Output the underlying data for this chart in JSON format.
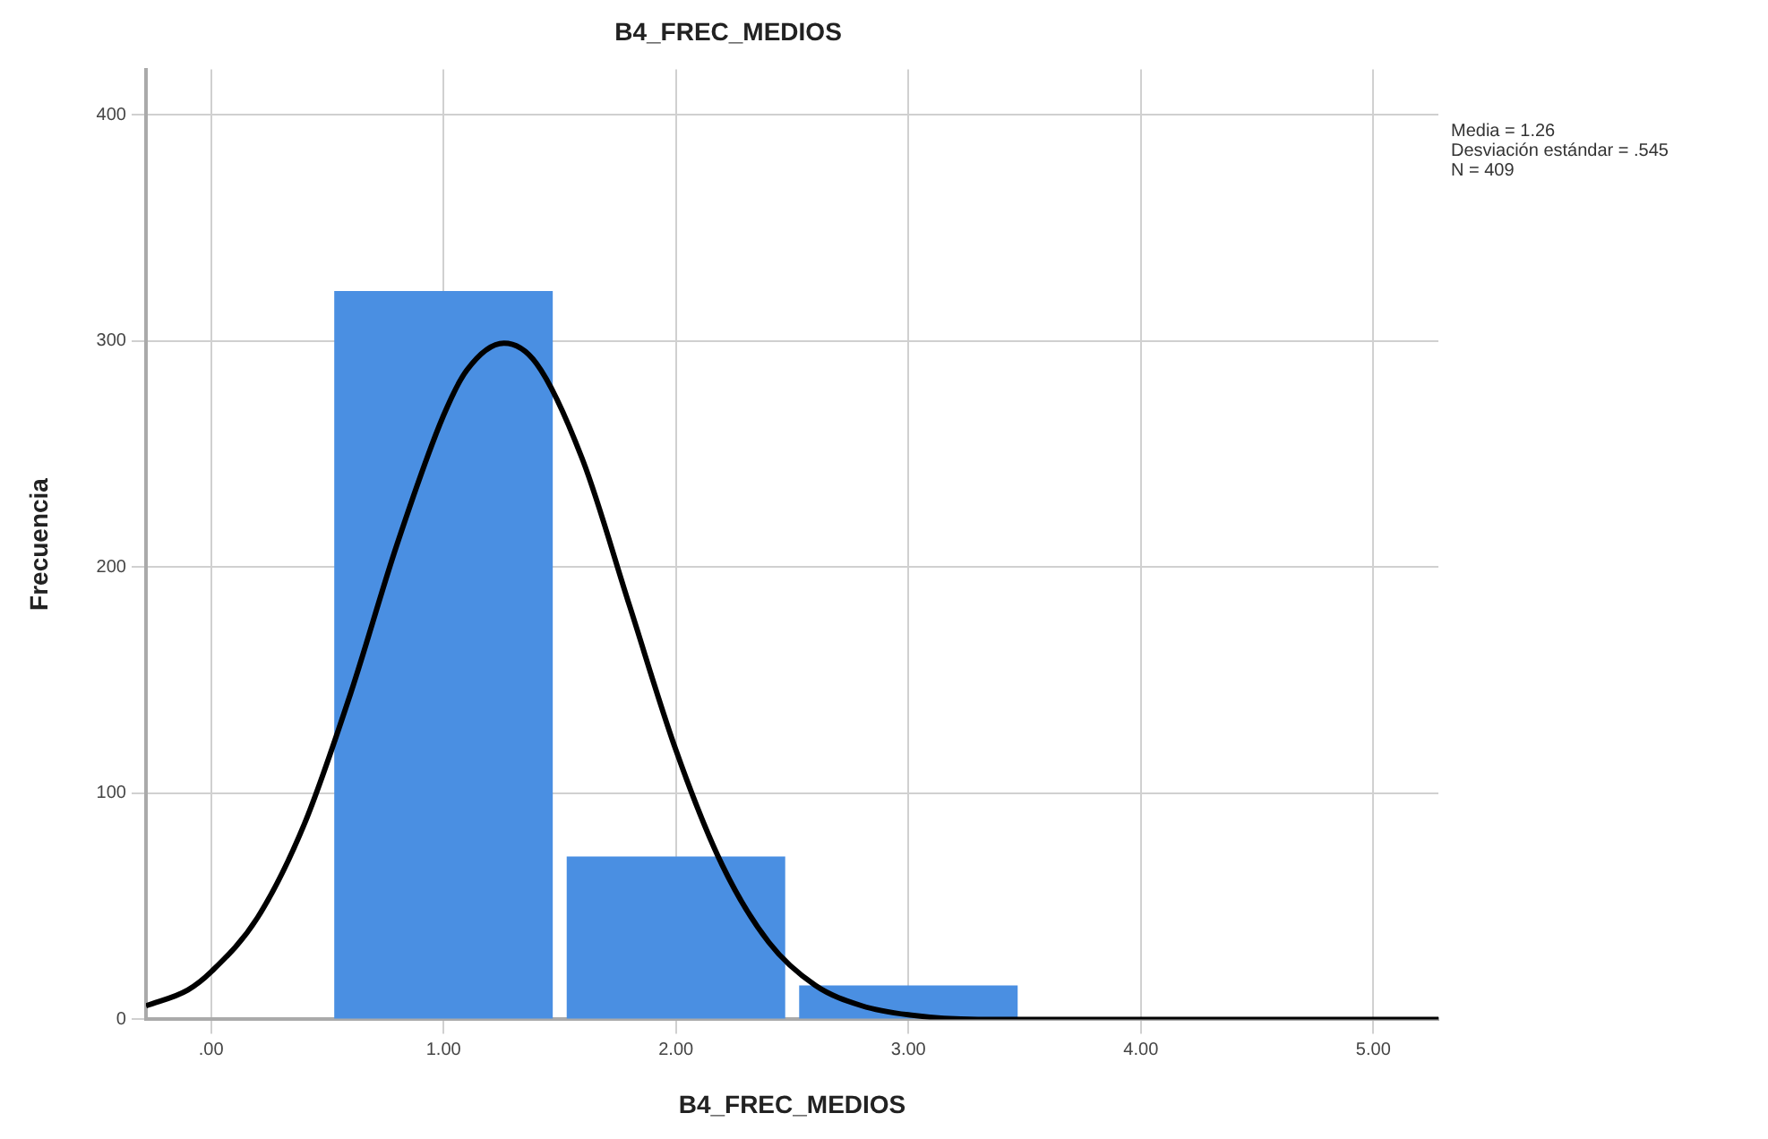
{
  "chart_data": {
    "type": "histogram",
    "title": "B4_FREC_MEDIOS",
    "xlabel": "B4_FREC_MEDIOS",
    "ylabel": "Frecuencia",
    "annotations": [
      "Media = 1.26",
      "Desviación estándar = .545",
      "N = 409"
    ],
    "bins": [
      0.5,
      1.5,
      2.5,
      3.5
    ],
    "values": [
      322,
      72,
      15
    ],
    "color": "#4a8fe2",
    "series": [
      {
        "type": "line",
        "color": "#000000",
        "x": [
          -0.28,
          -0.1,
          0,
          0.2,
          0.4,
          0.6,
          0.8,
          1,
          1.1,
          1.26,
          1.4,
          1.6,
          1.8,
          2,
          2.2,
          2.4,
          2.6,
          2.8,
          3,
          3.3,
          3.6,
          4,
          5.28
        ],
        "values": [
          6,
          13,
          21,
          45,
          86,
          144,
          210,
          267,
          287,
          299,
          290,
          247,
          183,
          119,
          68,
          34,
          15,
          6,
          2,
          0,
          0,
          0,
          0
        ]
      }
    ],
    "xlim": [
      -0.28,
      5.28
    ],
    "xticks": [
      {
        "value": 0,
        "label": ".00"
      },
      {
        "value": 1,
        "label": "1.00"
      },
      {
        "value": 2,
        "label": "2.00"
      },
      {
        "value": 3,
        "label": "3.00"
      },
      {
        "value": 4,
        "label": "4.00"
      },
      {
        "value": 5,
        "label": "5.00"
      }
    ],
    "ylim": [
      0,
      420
    ],
    "yticks": [
      0,
      100,
      200,
      300,
      400
    ],
    "grid": true,
    "marker": "none",
    "line_style": "solid",
    "legend": false
  }
}
